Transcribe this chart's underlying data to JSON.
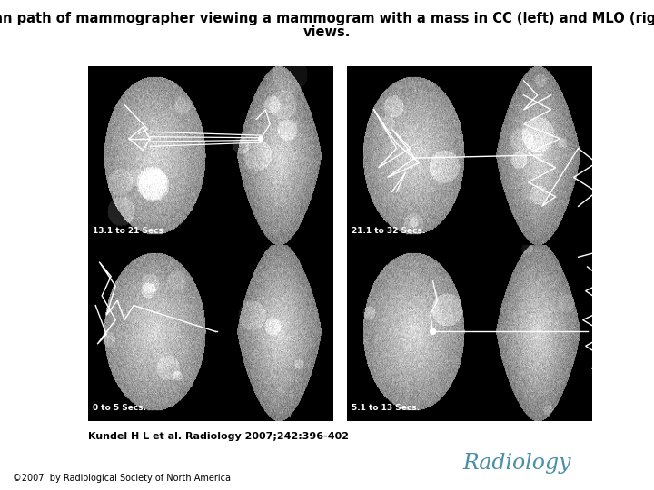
{
  "title_line1": "Scan path of mammographer viewing a mammogram with a mass in CC (left) and MLO (right)",
  "title_line2": "views.",
  "title_fontsize": 10.5,
  "title_fontweight": "bold",
  "citation": "Kundel H L et al. Radiology 2007;242:396-402",
  "citation_fontsize": 8,
  "citation_fontweight": "bold",
  "radiology_text": "Radiology",
  "radiology_fontsize": 17,
  "radiology_color": "#4a8fa8",
  "copyright_text": "©2007  by Radiological Society of North America",
  "copyright_fontsize": 7,
  "background_color": "#ffffff",
  "image_labels": [
    "0 to 5 Secs.",
    "5.1 to 13 Secs.",
    "13.1 to 21 Secs",
    "21.1 to 32 Secs."
  ],
  "fig_width": 7.2,
  "fig_height": 5.4,
  "dpi": 100
}
